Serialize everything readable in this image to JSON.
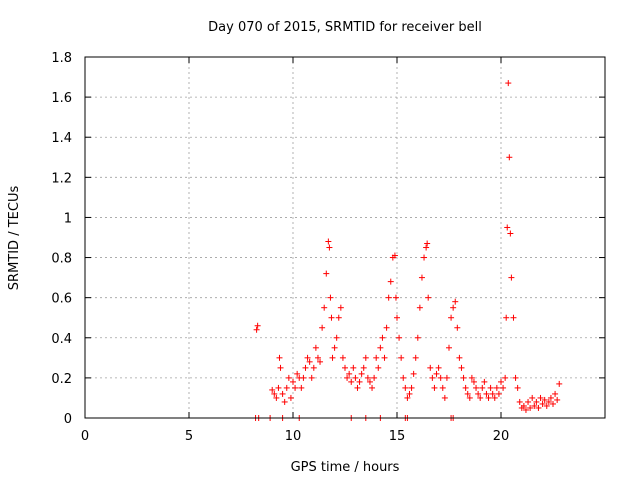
{
  "chart_data": {
    "type": "scatter",
    "title": "Day 070 of 2015, SRMTID for receiver bell",
    "xlabel": "GPS time / hours",
    "ylabel": "SRMTID / TECUs",
    "xlim": [
      0,
      25
    ],
    "ylim": [
      0,
      1.8
    ],
    "xticks": [
      "0",
      "5",
      "10",
      "15",
      "20"
    ],
    "yticks": [
      "0",
      "0.2",
      "0.4",
      "0.6",
      "0.8",
      "1",
      "1.2",
      "1.4",
      "1.6",
      "1.8"
    ],
    "grid": true,
    "marker": "+",
    "color": "#ff0000",
    "series": [
      {
        "name": "SRMTID",
        "x": [
          8.2,
          8.25,
          8.3,
          8.35,
          8.9,
          9.0,
          9.1,
          9.2,
          9.3,
          9.35,
          9.4,
          9.5,
          9.6,
          9.7,
          9.8,
          9.9,
          10.0,
          10.1,
          10.2,
          10.3,
          10.4,
          10.5,
          10.6,
          10.7,
          10.8,
          10.9,
          11.0,
          11.1,
          11.2,
          11.3,
          11.4,
          11.5,
          11.6,
          11.7,
          11.75,
          11.8,
          11.85,
          11.9,
          12.0,
          12.1,
          12.2,
          12.3,
          12.4,
          12.5,
          12.6,
          12.7,
          12.8,
          12.9,
          13.0,
          13.1,
          13.2,
          13.3,
          13.4,
          13.5,
          13.6,
          13.7,
          13.8,
          13.9,
          14.0,
          14.1,
          14.2,
          14.3,
          14.4,
          14.5,
          14.6,
          14.7,
          14.8,
          14.9,
          14.95,
          15.0,
          15.1,
          15.2,
          15.3,
          15.4,
          15.5,
          15.6,
          15.7,
          15.8,
          15.9,
          16.0,
          16.1,
          16.2,
          16.3,
          16.4,
          16.45,
          16.5,
          16.6,
          16.7,
          16.8,
          16.9,
          17.0,
          17.1,
          17.2,
          17.3,
          17.4,
          17.5,
          17.6,
          17.7,
          17.8,
          17.9,
          18.0,
          18.1,
          18.2,
          18.3,
          18.4,
          18.5,
          18.6,
          18.7,
          18.8,
          18.9,
          19.0,
          19.1,
          19.2,
          19.3,
          19.4,
          19.5,
          19.6,
          19.7,
          19.8,
          19.9,
          20.0,
          20.1,
          20.2,
          20.25,
          20.3,
          20.35,
          20.4,
          20.45,
          20.5,
          20.6,
          20.7,
          20.8,
          20.9,
          21.0,
          21.1,
          21.2,
          21.3,
          21.4,
          21.5,
          21.6,
          21.7,
          21.8,
          21.9,
          22.0,
          22.1,
          22.2,
          22.3,
          22.4,
          22.5,
          22.6,
          22.7,
          22.8,
          15.4,
          15.5,
          17.6,
          17.7,
          14.2,
          13.5,
          12.8,
          10.3,
          9.5
        ],
        "y": [
          0.0,
          0.44,
          0.46,
          0.0,
          0.0,
          0.14,
          0.12,
          0.1,
          0.15,
          0.3,
          0.25,
          0.12,
          0.08,
          0.15,
          0.2,
          0.1,
          0.18,
          0.15,
          0.22,
          0.2,
          0.15,
          0.2,
          0.25,
          0.3,
          0.28,
          0.2,
          0.25,
          0.35,
          0.3,
          0.28,
          0.45,
          0.55,
          0.72,
          0.88,
          0.85,
          0.6,
          0.5,
          0.3,
          0.35,
          0.4,
          0.5,
          0.55,
          0.3,
          0.25,
          0.2,
          0.22,
          0.18,
          0.25,
          0.2,
          0.15,
          0.18,
          0.22,
          0.25,
          0.3,
          0.2,
          0.18,
          0.15,
          0.2,
          0.3,
          0.25,
          0.35,
          0.4,
          0.3,
          0.45,
          0.6,
          0.68,
          0.8,
          0.81,
          0.6,
          0.5,
          0.4,
          0.3,
          0.2,
          0.15,
          0.1,
          0.12,
          0.15,
          0.22,
          0.3,
          0.4,
          0.55,
          0.7,
          0.8,
          0.85,
          0.87,
          0.6,
          0.25,
          0.2,
          0.15,
          0.22,
          0.25,
          0.2,
          0.15,
          0.1,
          0.2,
          0.35,
          0.5,
          0.55,
          0.58,
          0.45,
          0.3,
          0.25,
          0.2,
          0.15,
          0.12,
          0.1,
          0.2,
          0.18,
          0.15,
          0.12,
          0.1,
          0.15,
          0.18,
          0.12,
          0.1,
          0.15,
          0.12,
          0.1,
          0.15,
          0.12,
          0.18,
          0.15,
          0.2,
          0.5,
          0.95,
          1.67,
          1.3,
          0.92,
          0.7,
          0.5,
          0.2,
          0.15,
          0.08,
          0.05,
          0.06,
          0.04,
          0.08,
          0.05,
          0.1,
          0.06,
          0.08,
          0.05,
          0.1,
          0.07,
          0.09,
          0.06,
          0.08,
          0.1,
          0.07,
          0.12,
          0.09,
          0.17,
          0.0,
          0.0,
          0.0,
          0.0,
          0.0,
          0.0,
          0.0,
          0.0,
          0.0
        ]
      }
    ]
  }
}
